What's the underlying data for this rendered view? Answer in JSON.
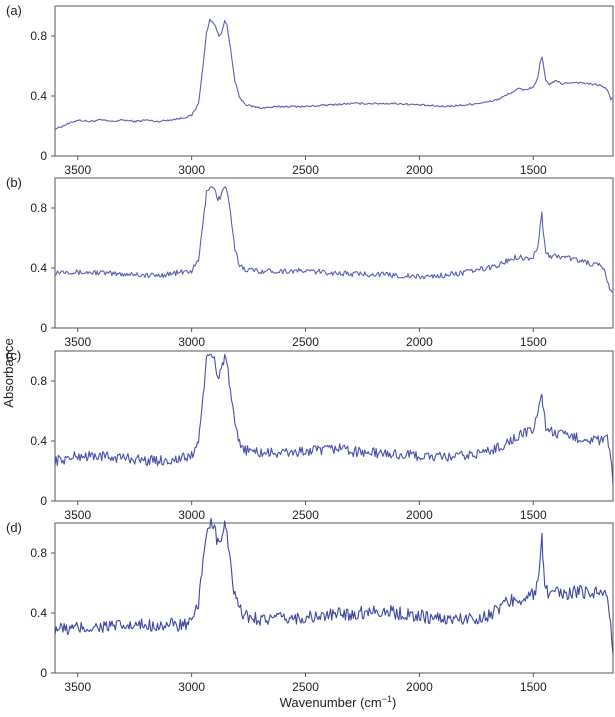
{
  "figure": {
    "ylabel": "Absorbance",
    "xlabel_main": "Wavenumber (cm",
    "xlabel_sup": "−1",
    "xlabel_close": ")"
  },
  "chart_data": [
    {
      "type": "line",
      "panel_label": "(a)",
      "xlim": [
        3600,
        1150
      ],
      "ylim": [
        0,
        1.0
      ],
      "x_ticks": [
        3500,
        3000,
        2500,
        2000,
        1500
      ],
      "x_tick_labels": [
        "3500",
        "3000",
        "2500",
        "2000",
        "1500"
      ],
      "y_ticks": [
        0,
        0.4,
        0.8
      ],
      "y_tick_labels": [
        "0",
        "0.4",
        "0.8"
      ],
      "color": "#5b5fb5",
      "noise": 0.006,
      "x": [
        3600,
        3550,
        3500,
        3450,
        3400,
        3350,
        3300,
        3250,
        3200,
        3150,
        3100,
        3050,
        3000,
        2970,
        2950,
        2935,
        2920,
        2900,
        2880,
        2870,
        2855,
        2845,
        2830,
        2810,
        2790,
        2760,
        2700,
        2600,
        2500,
        2400,
        2300,
        2200,
        2100,
        2000,
        1900,
        1800,
        1700,
        1650,
        1600,
        1560,
        1540,
        1520,
        1500,
        1480,
        1470,
        1462,
        1455,
        1445,
        1430,
        1400,
        1370,
        1340,
        1300,
        1250,
        1200,
        1175,
        1160,
        1150
      ],
      "y": [
        0.18,
        0.21,
        0.24,
        0.23,
        0.24,
        0.23,
        0.24,
        0.23,
        0.24,
        0.23,
        0.24,
        0.25,
        0.27,
        0.35,
        0.6,
        0.82,
        0.91,
        0.88,
        0.8,
        0.82,
        0.9,
        0.87,
        0.72,
        0.5,
        0.39,
        0.34,
        0.32,
        0.33,
        0.33,
        0.34,
        0.35,
        0.35,
        0.35,
        0.34,
        0.33,
        0.34,
        0.36,
        0.38,
        0.42,
        0.45,
        0.44,
        0.45,
        0.46,
        0.52,
        0.62,
        0.66,
        0.6,
        0.5,
        0.48,
        0.5,
        0.48,
        0.49,
        0.49,
        0.48,
        0.47,
        0.44,
        0.38,
        0.38
      ]
    },
    {
      "type": "line",
      "panel_label": "(b)",
      "xlim": [
        3600,
        1150
      ],
      "ylim": [
        0,
        1.0
      ],
      "x_ticks": [
        3500,
        3000,
        2500,
        2000,
        1500
      ],
      "x_tick_labels": [
        "3500",
        "3000",
        "2500",
        "2000",
        "1500"
      ],
      "y_ticks": [
        0,
        0.4,
        0.8
      ],
      "y_tick_labels": [
        "0",
        "0.4",
        "0.8"
      ],
      "color": "#5b5fb5",
      "noise": 0.018,
      "x": [
        3600,
        3550,
        3500,
        3450,
        3400,
        3350,
        3300,
        3250,
        3200,
        3150,
        3100,
        3050,
        3000,
        2970,
        2950,
        2935,
        2920,
        2900,
        2885,
        2870,
        2855,
        2845,
        2830,
        2810,
        2790,
        2760,
        2700,
        2600,
        2500,
        2400,
        2300,
        2200,
        2100,
        2000,
        1900,
        1800,
        1700,
        1650,
        1600,
        1560,
        1540,
        1520,
        1500,
        1480,
        1470,
        1462,
        1455,
        1445,
        1430,
        1400,
        1350,
        1300,
        1250,
        1200,
        1180,
        1165,
        1150
      ],
      "y": [
        0.37,
        0.38,
        0.37,
        0.37,
        0.37,
        0.36,
        0.36,
        0.36,
        0.35,
        0.35,
        0.36,
        0.37,
        0.38,
        0.45,
        0.7,
        0.9,
        0.95,
        0.93,
        0.86,
        0.88,
        0.95,
        0.92,
        0.76,
        0.52,
        0.42,
        0.39,
        0.38,
        0.38,
        0.38,
        0.37,
        0.36,
        0.36,
        0.35,
        0.34,
        0.35,
        0.37,
        0.4,
        0.42,
        0.46,
        0.48,
        0.46,
        0.47,
        0.47,
        0.55,
        0.68,
        0.76,
        0.62,
        0.5,
        0.48,
        0.48,
        0.47,
        0.45,
        0.43,
        0.41,
        0.35,
        0.25,
        0.24
      ]
    },
    {
      "type": "line",
      "panel_label": "(c)",
      "xlim": [
        3600,
        1150
      ],
      "ylim": [
        0,
        1.0
      ],
      "x_ticks": [
        3500,
        3000,
        2500,
        2000,
        1500
      ],
      "x_tick_labels": [
        "3500",
        "3000",
        "2500",
        "2000",
        "1500"
      ],
      "y_ticks": [
        0,
        0.4,
        0.8
      ],
      "y_tick_labels": [
        "0",
        "0.4",
        "0.8"
      ],
      "color": "#4a50aa",
      "noise": 0.035,
      "x": [
        3600,
        3550,
        3500,
        3450,
        3400,
        3350,
        3300,
        3250,
        3200,
        3150,
        3100,
        3050,
        3000,
        2970,
        2950,
        2935,
        2920,
        2900,
        2885,
        2870,
        2855,
        2845,
        2830,
        2810,
        2790,
        2760,
        2700,
        2600,
        2500,
        2400,
        2340,
        2300,
        2200,
        2100,
        2000,
        1900,
        1800,
        1700,
        1650,
        1600,
        1560,
        1540,
        1520,
        1500,
        1480,
        1470,
        1462,
        1455,
        1445,
        1430,
        1400,
        1350,
        1300,
        1250,
        1200,
        1175,
        1160,
        1150
      ],
      "y": [
        0.27,
        0.28,
        0.3,
        0.3,
        0.3,
        0.29,
        0.29,
        0.28,
        0.27,
        0.27,
        0.27,
        0.28,
        0.3,
        0.4,
        0.7,
        0.93,
        0.97,
        0.95,
        0.82,
        0.88,
        0.97,
        0.92,
        0.72,
        0.5,
        0.38,
        0.34,
        0.32,
        0.32,
        0.33,
        0.34,
        0.36,
        0.33,
        0.32,
        0.31,
        0.3,
        0.29,
        0.3,
        0.33,
        0.36,
        0.4,
        0.44,
        0.45,
        0.46,
        0.48,
        0.58,
        0.68,
        0.72,
        0.6,
        0.5,
        0.47,
        0.45,
        0.43,
        0.42,
        0.41,
        0.4,
        0.42,
        0.3,
        0.1
      ]
    },
    {
      "type": "line",
      "panel_label": "(d)",
      "xlim": [
        3600,
        1150
      ],
      "ylim": [
        0,
        1.0
      ],
      "x_ticks": [
        3500,
        3000,
        2500,
        2000,
        1500
      ],
      "x_tick_labels": [
        "3500",
        "3000",
        "2500",
        "2000",
        "1500"
      ],
      "y_ticks": [
        0,
        0.4,
        0.8
      ],
      "y_tick_labels": [
        "0",
        "0.4",
        "0.8"
      ],
      "color": "#3f46a3",
      "noise": 0.045,
      "x": [
        3600,
        3550,
        3500,
        3450,
        3400,
        3350,
        3300,
        3250,
        3200,
        3150,
        3100,
        3050,
        3000,
        2970,
        2950,
        2935,
        2920,
        2900,
        2885,
        2870,
        2855,
        2845,
        2830,
        2810,
        2790,
        2760,
        2700,
        2600,
        2500,
        2400,
        2340,
        2300,
        2200,
        2100,
        2000,
        1900,
        1800,
        1700,
        1660,
        1640,
        1600,
        1560,
        1540,
        1520,
        1500,
        1480,
        1470,
        1462,
        1455,
        1445,
        1430,
        1400,
        1350,
        1300,
        1250,
        1200,
        1175,
        1160,
        1150
      ],
      "y": [
        0.3,
        0.29,
        0.3,
        0.3,
        0.31,
        0.31,
        0.31,
        0.31,
        0.32,
        0.32,
        0.32,
        0.32,
        0.33,
        0.45,
        0.75,
        0.96,
        1.0,
        0.95,
        0.86,
        0.9,
        0.97,
        0.93,
        0.73,
        0.5,
        0.42,
        0.38,
        0.36,
        0.36,
        0.37,
        0.38,
        0.4,
        0.39,
        0.42,
        0.4,
        0.38,
        0.36,
        0.36,
        0.38,
        0.42,
        0.45,
        0.48,
        0.5,
        0.5,
        0.52,
        0.52,
        0.58,
        0.8,
        0.9,
        0.7,
        0.55,
        0.52,
        0.53,
        0.53,
        0.54,
        0.54,
        0.55,
        0.52,
        0.3,
        0.12
      ]
    }
  ]
}
